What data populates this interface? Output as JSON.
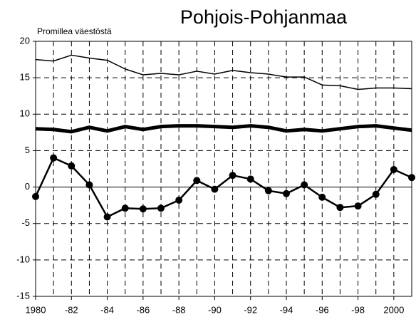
{
  "chart_data": {
    "type": "line",
    "title": "Pohjois-Pohjanmaa",
    "ylabel": "Promillea väestöstä",
    "x": [
      1980,
      1981,
      1982,
      1983,
      1984,
      1985,
      1986,
      1987,
      1988,
      1989,
      1990,
      1991,
      1992,
      1993,
      1994,
      1995,
      1996,
      1997,
      1998,
      1999,
      2000,
      2001
    ],
    "series": [
      {
        "color": "#000000",
        "width": 1.5,
        "markers": false,
        "values": [
          17.5,
          17.3,
          18.1,
          17.7,
          17.4,
          16.2,
          15.4,
          15.6,
          15.4,
          15.9,
          15.5,
          16.0,
          15.7,
          15.5,
          15.1,
          15.1,
          14.0,
          13.9,
          13.4,
          13.6,
          13.6,
          13.5
        ]
      },
      {
        "color": "#000000",
        "width": 5,
        "markers": false,
        "values": [
          8.0,
          7.9,
          7.6,
          8.2,
          7.7,
          8.3,
          7.9,
          8.3,
          8.4,
          8.4,
          8.3,
          8.2,
          8.4,
          8.2,
          7.7,
          7.9,
          7.7,
          8.0,
          8.3,
          8.4,
          8.1,
          7.8
        ]
      },
      {
        "color": "#000000",
        "width": 2.5,
        "markers": true,
        "values": [
          -1.3,
          4.0,
          2.9,
          0.3,
          -4.1,
          -2.9,
          -3.0,
          -2.9,
          -1.8,
          0.9,
          -0.3,
          1.6,
          1.1,
          -0.5,
          -0.9,
          0.3,
          -1.4,
          -2.8,
          -2.6,
          -1.0,
          2.4,
          1.3
        ]
      }
    ],
    "xlim": [
      1980,
      2001
    ],
    "xticks": [
      1980,
      {
        "value": 1982,
        "label": "-82"
      },
      {
        "value": 1984,
        "label": "-84"
      },
      {
        "value": 1986,
        "label": "-86"
      },
      {
        "value": 1988,
        "label": "-88"
      },
      {
        "value": 1990,
        "label": "-90"
      },
      {
        "value": 1992,
        "label": "-92"
      },
      {
        "value": 1994,
        "label": "-94"
      },
      {
        "value": 1996,
        "label": "-96"
      },
      {
        "value": 1998,
        "label": "-98"
      },
      2000
    ],
    "ylim": [
      -15,
      20
    ],
    "yticks": [
      -15,
      -10,
      -5,
      0,
      5,
      10,
      15,
      20
    ],
    "grid": true
  }
}
